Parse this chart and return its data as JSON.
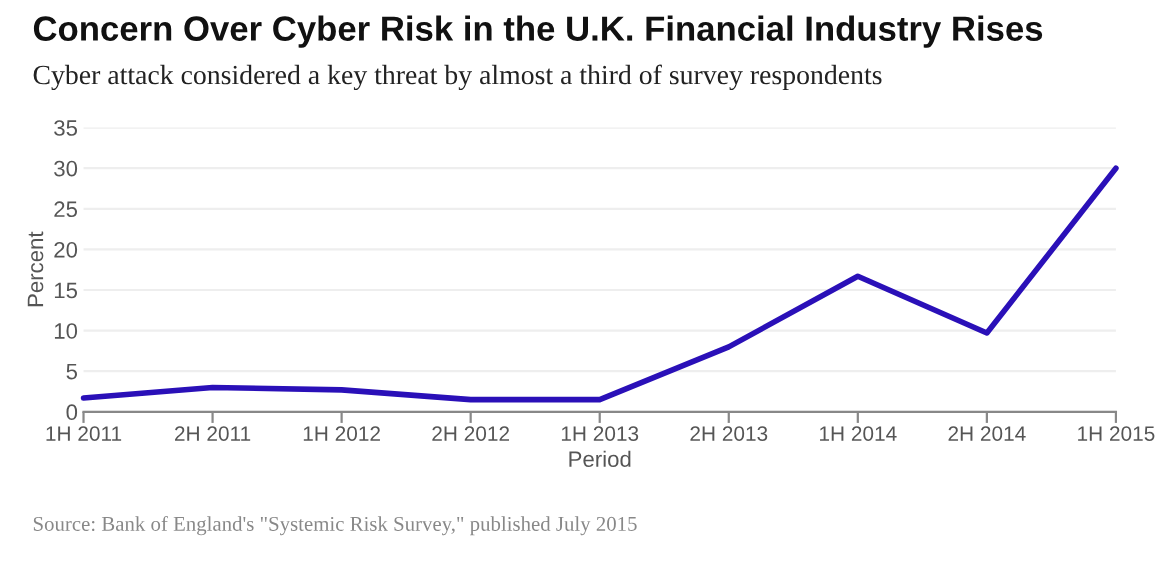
{
  "chart_data": {
    "type": "line",
    "title": "Concern Over Cyber Risk in the U.K. Financial Industry Rises",
    "subtitle": "Cyber attack considered a key threat by almost a third of survey respondents",
    "xlabel": "Period",
    "ylabel": "Percent",
    "categories": [
      "1H 2011",
      "2H 2011",
      "1H 2012",
      "2H 2012",
      "1H 2013",
      "2H 2013",
      "1H 2014",
      "2H 2014",
      "1H 2015"
    ],
    "series": [
      {
        "color": "#2a10b8",
        "values": [
          1.7,
          3.0,
          2.7,
          1.5,
          1.5,
          8.0,
          16.7,
          9.7,
          30.0
        ]
      }
    ],
    "ylim": [
      0,
      35
    ],
    "yticks": [
      0,
      5,
      10,
      15,
      20,
      25,
      30,
      35
    ],
    "grid": "y",
    "legend": false,
    "annotations": [
      "Source: Bank of England's \"Systemic Risk Survey,\" published July 2015"
    ]
  }
}
